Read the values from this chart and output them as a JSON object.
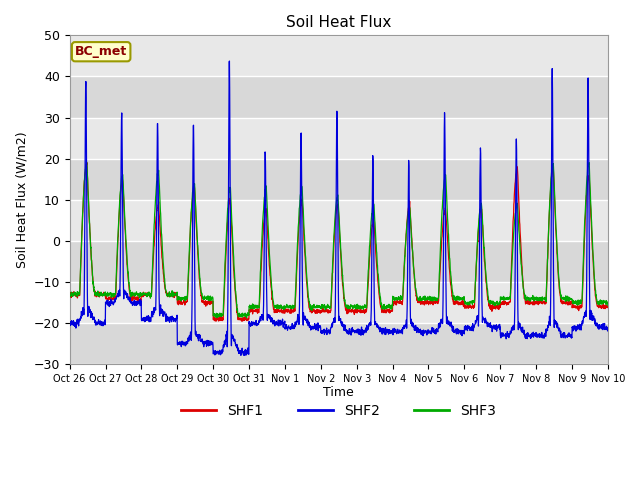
{
  "title": "Soil Heat Flux",
  "ylabel": "Soil Heat Flux (W/m2)",
  "xlabel": "Time",
  "ylim": [
    -30,
    50
  ],
  "yticks": [
    -30,
    -20,
    -10,
    0,
    10,
    20,
    30,
    40,
    50
  ],
  "colors": {
    "SHF1": "#dd0000",
    "SHF2": "#0000dd",
    "SHF3": "#00aa00"
  },
  "legend_label": "BC_met",
  "background_color": "#e0e0e0",
  "tick_labels": [
    "Oct 26",
    "Oct 27",
    "Oct 28",
    "Oct 29",
    "Oct 30",
    "Oct 31",
    "Nov 1",
    "Nov 2",
    "Nov 3",
    "Nov 4",
    "Nov 5",
    "Nov 6",
    "Nov 7",
    "Nov 8",
    "Nov 9",
    "Nov 10"
  ],
  "n_days": 15,
  "pts_per_day": 144,
  "shf1_day_peaks": [
    19,
    15,
    9,
    13,
    10,
    8,
    10,
    9,
    5,
    9,
    8,
    8,
    18,
    18,
    16
  ],
  "shf1_night_vals": [
    -13,
    -14,
    -13,
    -15,
    -19,
    -17,
    -17,
    -17,
    -17,
    -15,
    -15,
    -16,
    -15,
    -15,
    -16
  ],
  "shf2_day_peaks": [
    39,
    31,
    29,
    29,
    45,
    22,
    27,
    32,
    21,
    20,
    31,
    23,
    25,
    41,
    40
  ],
  "shf2_night_vals": [
    -20,
    -15,
    -19,
    -25,
    -27,
    -20,
    -21,
    -22,
    -22,
    -22,
    -22,
    -21,
    -23,
    -23,
    -21
  ],
  "shf3_day_peaks": [
    19,
    16,
    17,
    14,
    13,
    13,
    13,
    11,
    9,
    8,
    16,
    9,
    9,
    19,
    19
  ],
  "shf3_night_vals": [
    -13,
    -13,
    -13,
    -14,
    -18,
    -16,
    -16,
    -16,
    -16,
    -14,
    -14,
    -15,
    -14,
    -14,
    -15
  ]
}
